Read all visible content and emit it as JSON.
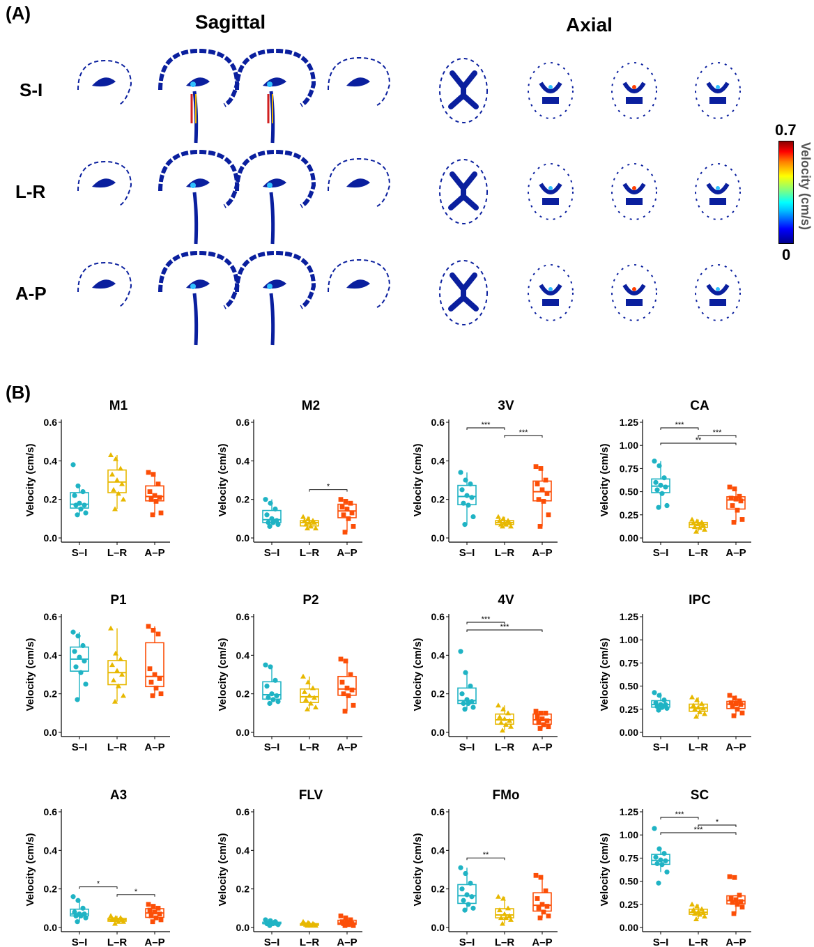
{
  "panel_a": {
    "letter": "(A)",
    "columns": [
      "Sagittal",
      "Axial"
    ],
    "rows": [
      "S-I",
      "L-R",
      "A-P"
    ],
    "colorbar": {
      "max": "0.7",
      "min": "0",
      "label": "Velocity (cm/s)",
      "colormap": "jet"
    }
  },
  "panel_b": {
    "letter": "(B)"
  },
  "colors": {
    "S-I": "#1fb3c4",
    "L-R": "#e7b800",
    "A-P": "#fc4e07"
  },
  "chart_data": [
    {
      "type": "box",
      "title": "M1",
      "ylabel": "Velocity (cm/s)",
      "categories": [
        "S–I",
        "L–R",
        "A–P"
      ],
      "ylim": [
        0,
        0.6
      ],
      "yticks": [
        "0.0",
        "0.2",
        "0.4",
        "0.6"
      ],
      "series": [
        {
          "category": "S–I",
          "values": [
            0.38,
            0.27,
            0.24,
            0.22,
            0.18,
            0.17,
            0.17,
            0.15,
            0.13,
            0.12
          ]
        },
        {
          "category": "L–R",
          "values": [
            0.43,
            0.41,
            0.36,
            0.33,
            0.3,
            0.28,
            0.25,
            0.23,
            0.2,
            0.15
          ]
        },
        {
          "category": "A–P",
          "values": [
            0.34,
            0.33,
            0.28,
            0.24,
            0.22,
            0.21,
            0.2,
            0.19,
            0.13,
            0.12
          ]
        }
      ],
      "significance": []
    },
    {
      "type": "box",
      "title": "M2",
      "ylabel": "Velocity (cm/s)",
      "categories": [
        "S–I",
        "L–R",
        "A–P"
      ],
      "ylim": [
        0,
        0.6
      ],
      "yticks": [
        "0.0",
        "0.2",
        "0.4",
        "0.6"
      ],
      "series": [
        {
          "category": "S–I",
          "values": [
            0.2,
            0.18,
            0.15,
            0.12,
            0.1,
            0.09,
            0.08,
            0.08,
            0.07,
            0.06
          ]
        },
        {
          "category": "L–R",
          "values": [
            0.11,
            0.1,
            0.09,
            0.09,
            0.08,
            0.08,
            0.07,
            0.06,
            0.05,
            0.05
          ]
        },
        {
          "category": "A–P",
          "values": [
            0.2,
            0.19,
            0.18,
            0.16,
            0.15,
            0.13,
            0.12,
            0.1,
            0.06,
            0.03
          ]
        }
      ],
      "significance": [
        {
          "from": 1,
          "to": 2,
          "label": "*"
        }
      ]
    },
    {
      "type": "box",
      "title": "3V",
      "ylabel": "Velocity (cm/s)",
      "categories": [
        "S–I",
        "L–R",
        "A–P"
      ],
      "ylim": [
        0,
        0.6
      ],
      "yticks": [
        "0.0",
        "0.2",
        "0.4",
        "0.6"
      ],
      "series": [
        {
          "category": "S–I",
          "values": [
            0.34,
            0.3,
            0.28,
            0.25,
            0.22,
            0.21,
            0.18,
            0.17,
            0.11,
            0.07
          ]
        },
        {
          "category": "L–R",
          "values": [
            0.11,
            0.1,
            0.09,
            0.09,
            0.08,
            0.08,
            0.07,
            0.07,
            0.06,
            0.06
          ]
        },
        {
          "category": "A–P",
          "values": [
            0.37,
            0.36,
            0.3,
            0.28,
            0.25,
            0.23,
            0.2,
            0.19,
            0.12,
            0.06
          ]
        }
      ],
      "significance": [
        {
          "from": 0,
          "to": 1,
          "label": "***"
        },
        {
          "from": 1,
          "to": 2,
          "label": "***"
        }
      ]
    },
    {
      "type": "box",
      "title": "CA",
      "ylabel": "Velocity (cm/s)",
      "categories": [
        "S–I",
        "L–R",
        "A–P"
      ],
      "ylim": [
        0,
        1.25
      ],
      "yticks": [
        "0.00",
        "0.25",
        "0.50",
        "0.75",
        "1.00",
        "1.25"
      ],
      "series": [
        {
          "category": "S–I",
          "values": [
            0.83,
            0.78,
            0.65,
            0.6,
            0.57,
            0.55,
            0.52,
            0.48,
            0.35,
            0.33
          ]
        },
        {
          "category": "L–R",
          "values": [
            0.2,
            0.18,
            0.17,
            0.16,
            0.15,
            0.14,
            0.12,
            0.11,
            0.09,
            0.07
          ]
        },
        {
          "category": "A–P",
          "values": [
            0.55,
            0.53,
            0.45,
            0.43,
            0.42,
            0.4,
            0.35,
            0.3,
            0.2,
            0.17
          ]
        }
      ],
      "significance": [
        {
          "from": 0,
          "to": 1,
          "label": "***"
        },
        {
          "from": 1,
          "to": 2,
          "label": "***"
        },
        {
          "from": 0,
          "to": 2,
          "label": "**"
        }
      ]
    },
    {
      "type": "box",
      "title": "P1",
      "ylabel": "Velocity (cm/s)",
      "categories": [
        "S–I",
        "L–R",
        "A–P"
      ],
      "ylim": [
        0,
        0.6
      ],
      "yticks": [
        "0.0",
        "0.2",
        "0.4",
        "0.6"
      ],
      "series": [
        {
          "category": "S–I",
          "values": [
            0.52,
            0.5,
            0.45,
            0.42,
            0.39,
            0.37,
            0.34,
            0.31,
            0.25,
            0.17
          ]
        },
        {
          "category": "L–R",
          "values": [
            0.54,
            0.41,
            0.38,
            0.35,
            0.32,
            0.3,
            0.27,
            0.24,
            0.19,
            0.16
          ]
        },
        {
          "category": "A–P",
          "values": [
            0.55,
            0.53,
            0.51,
            0.33,
            0.3,
            0.28,
            0.26,
            0.23,
            0.2,
            0.19
          ]
        }
      ],
      "significance": []
    },
    {
      "type": "box",
      "title": "P2",
      "ylabel": "Velocity (cm/s)",
      "categories": [
        "S–I",
        "L–R",
        "A–P"
      ],
      "ylim": [
        0,
        0.6
      ],
      "yticks": [
        "0.0",
        "0.2",
        "0.4",
        "0.6"
      ],
      "series": [
        {
          "category": "S–I",
          "values": [
            0.35,
            0.34,
            0.27,
            0.24,
            0.2,
            0.19,
            0.18,
            0.17,
            0.16,
            0.15
          ]
        },
        {
          "category": "L–R",
          "values": [
            0.29,
            0.26,
            0.23,
            0.21,
            0.19,
            0.18,
            0.17,
            0.15,
            0.13,
            0.12
          ]
        },
        {
          "category": "A–P",
          "values": [
            0.38,
            0.37,
            0.3,
            0.26,
            0.23,
            0.22,
            0.2,
            0.19,
            0.14,
            0.11
          ]
        }
      ],
      "significance": []
    },
    {
      "type": "box",
      "title": "4V",
      "ylabel": "Velocity (cm/s)",
      "categories": [
        "S–I",
        "L–R",
        "A–P"
      ],
      "ylim": [
        0,
        0.6
      ],
      "yticks": [
        "0.0",
        "0.2",
        "0.4",
        "0.6"
      ],
      "series": [
        {
          "category": "S–I",
          "values": [
            0.42,
            0.31,
            0.24,
            0.2,
            0.17,
            0.16,
            0.15,
            0.15,
            0.13,
            0.12
          ]
        },
        {
          "category": "L–R",
          "values": [
            0.14,
            0.12,
            0.1,
            0.08,
            0.07,
            0.06,
            0.05,
            0.04,
            0.03,
            0.01
          ]
        },
        {
          "category": "A–P",
          "values": [
            0.11,
            0.1,
            0.1,
            0.08,
            0.07,
            0.06,
            0.05,
            0.04,
            0.03,
            0.02
          ]
        }
      ],
      "significance": [
        {
          "from": 0,
          "to": 1,
          "label": "***"
        },
        {
          "from": 0,
          "to": 2,
          "label": "***"
        }
      ]
    },
    {
      "type": "box",
      "title": "IPC",
      "ylabel": "Velocity (cm/s)",
      "categories": [
        "S–I",
        "L–R",
        "A–P"
      ],
      "ylim": [
        0,
        1.25
      ],
      "yticks": [
        "0.00",
        "0.25",
        "0.50",
        "0.75",
        "1.00",
        "1.25"
      ],
      "series": [
        {
          "category": "S–I",
          "values": [
            0.43,
            0.4,
            0.35,
            0.32,
            0.3,
            0.3,
            0.28,
            0.27,
            0.26,
            0.24
          ]
        },
        {
          "category": "L–R",
          "values": [
            0.38,
            0.35,
            0.31,
            0.29,
            0.27,
            0.26,
            0.25,
            0.22,
            0.2,
            0.17
          ]
        },
        {
          "category": "A–P",
          "values": [
            0.4,
            0.37,
            0.34,
            0.32,
            0.31,
            0.3,
            0.28,
            0.25,
            0.21,
            0.18
          ]
        }
      ],
      "significance": []
    },
    {
      "type": "box",
      "title": "A3",
      "ylabel": "Velocity (cm/s)",
      "categories": [
        "S–I",
        "L–R",
        "A–P"
      ],
      "ylim": [
        0,
        0.6
      ],
      "yticks": [
        "0.0",
        "0.2",
        "0.4",
        "0.6"
      ],
      "series": [
        {
          "category": "S–I",
          "values": [
            0.16,
            0.14,
            0.1,
            0.08,
            0.07,
            0.07,
            0.06,
            0.06,
            0.05,
            0.03
          ]
        },
        {
          "category": "L–R",
          "values": [
            0.06,
            0.05,
            0.05,
            0.04,
            0.04,
            0.04,
            0.04,
            0.03,
            0.03,
            0.02
          ]
        },
        {
          "category": "A–P",
          "values": [
            0.12,
            0.11,
            0.1,
            0.09,
            0.08,
            0.07,
            0.06,
            0.05,
            0.04,
            0.03
          ]
        }
      ],
      "significance": [
        {
          "from": 0,
          "to": 1,
          "label": "*"
        },
        {
          "from": 1,
          "to": 2,
          "label": "*"
        }
      ]
    },
    {
      "type": "box",
      "title": "FLV",
      "ylabel": "Velocity (cm/s)",
      "categories": [
        "S–I",
        "L–R",
        "A–P"
      ],
      "ylim": [
        0,
        0.6
      ],
      "yticks": [
        "0.0",
        "0.2",
        "0.4",
        "0.6"
      ],
      "series": [
        {
          "category": "S–I",
          "values": [
            0.04,
            0.035,
            0.03,
            0.02,
            0.02,
            0.02,
            0.02,
            0.02,
            0.015,
            0.01
          ]
        },
        {
          "category": "L–R",
          "values": [
            0.03,
            0.025,
            0.02,
            0.02,
            0.02,
            0.015,
            0.015,
            0.01,
            0.01,
            0.01
          ]
        },
        {
          "category": "A–P",
          "values": [
            0.06,
            0.05,
            0.04,
            0.03,
            0.025,
            0.02,
            0.02,
            0.015,
            0.01,
            0.01
          ]
        }
      ],
      "significance": []
    },
    {
      "type": "box",
      "title": "FMo",
      "ylabel": "Velocity (cm/s)",
      "categories": [
        "S–I",
        "L–R",
        "A–P"
      ],
      "ylim": [
        0,
        0.6
      ],
      "yticks": [
        "0.0",
        "0.2",
        "0.4",
        "0.6"
      ],
      "series": [
        {
          "category": "S–I",
          "values": [
            0.31,
            0.28,
            0.23,
            0.2,
            0.17,
            0.16,
            0.14,
            0.12,
            0.1,
            0.09
          ]
        },
        {
          "category": "L–R",
          "values": [
            0.16,
            0.15,
            0.1,
            0.09,
            0.07,
            0.06,
            0.05,
            0.05,
            0.04,
            0.02
          ]
        },
        {
          "category": "A–P",
          "values": [
            0.27,
            0.26,
            0.19,
            0.15,
            0.12,
            0.11,
            0.1,
            0.08,
            0.06,
            0.05
          ]
        }
      ],
      "significance": [
        {
          "from": 0,
          "to": 1,
          "label": "**"
        }
      ]
    },
    {
      "type": "box",
      "title": "SC",
      "ylabel": "Velocity (cm/s)",
      "categories": [
        "S–I",
        "L–R",
        "A–P"
      ],
      "ylim": [
        0,
        1.25
      ],
      "yticks": [
        "0.00",
        "0.25",
        "0.50",
        "0.75",
        "1.00",
        "1.25"
      ],
      "series": [
        {
          "category": "S–I",
          "values": [
            1.07,
            0.85,
            0.8,
            0.76,
            0.73,
            0.72,
            0.69,
            0.68,
            0.6,
            0.48
          ]
        },
        {
          "category": "L–R",
          "values": [
            0.25,
            0.23,
            0.2,
            0.19,
            0.17,
            0.16,
            0.15,
            0.14,
            0.12,
            0.09
          ]
        },
        {
          "category": "A–P",
          "values": [
            0.55,
            0.54,
            0.35,
            0.32,
            0.3,
            0.28,
            0.27,
            0.25,
            0.22,
            0.15
          ]
        }
      ],
      "significance": [
        {
          "from": 0,
          "to": 1,
          "label": "***"
        },
        {
          "from": 1,
          "to": 2,
          "label": "*"
        },
        {
          "from": 0,
          "to": 2,
          "label": "***"
        }
      ]
    }
  ]
}
